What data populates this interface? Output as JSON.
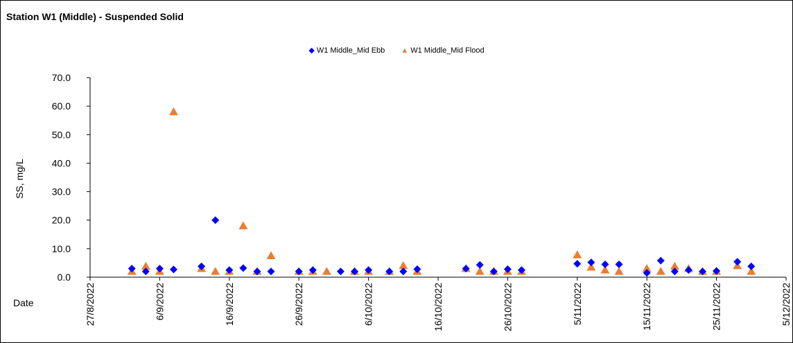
{
  "chart_data": {
    "type": "scatter",
    "title": "Station W1 (Middle) - Suspended Solid",
    "xlabel": "Date",
    "ylabel": "SS, mg/L",
    "ylim": [
      0,
      70
    ],
    "y_ticks": [
      "0.0",
      "10.0",
      "20.0",
      "30.0",
      "40.0",
      "50.0",
      "60.0",
      "70.0"
    ],
    "x_ticks": [
      "27/8/2022",
      "6/9/2022",
      "16/9/2022",
      "26/9/2022",
      "6/10/2022",
      "16/10/2022",
      "26/10/2022",
      "5/11/2022",
      "15/11/2022",
      "25/11/2022",
      "5/12/2022"
    ],
    "x_type": "date",
    "xlim": [
      "2022-08-27",
      "2022-12-05"
    ],
    "grid": false,
    "legend": "top-center",
    "series": [
      {
        "name": "W1 Middle_Mid Ebb",
        "color": "#0000ff",
        "marker": "diamond",
        "points": [
          [
            "2022-09-02",
            3.0
          ],
          [
            "2022-09-04",
            2.0
          ],
          [
            "2022-09-06",
            3.0
          ],
          [
            "2022-09-08",
            2.7
          ],
          [
            "2022-09-12",
            3.8
          ],
          [
            "2022-09-14",
            20.0
          ],
          [
            "2022-09-16",
            2.5
          ],
          [
            "2022-09-18",
            3.2
          ],
          [
            "2022-09-20",
            2.0
          ],
          [
            "2022-09-22",
            2.0
          ],
          [
            "2022-09-26",
            2.0
          ],
          [
            "2022-09-28",
            2.5
          ],
          [
            "2022-10-02",
            2.0
          ],
          [
            "2022-10-04",
            2.0
          ],
          [
            "2022-10-06",
            2.5
          ],
          [
            "2022-10-09",
            2.0
          ],
          [
            "2022-10-11",
            2.0
          ],
          [
            "2022-10-13",
            2.8
          ],
          [
            "2022-10-20",
            3.0
          ],
          [
            "2022-10-22",
            4.3
          ],
          [
            "2022-10-24",
            2.0
          ],
          [
            "2022-10-26",
            2.8
          ],
          [
            "2022-10-28",
            2.5
          ],
          [
            "2022-11-05",
            4.7
          ],
          [
            "2022-11-07",
            5.2
          ],
          [
            "2022-11-09",
            4.5
          ],
          [
            "2022-11-11",
            4.5
          ],
          [
            "2022-11-15",
            1.5
          ],
          [
            "2022-11-17",
            5.8
          ],
          [
            "2022-11-19",
            2.0
          ],
          [
            "2022-11-21",
            2.5
          ],
          [
            "2022-11-23",
            2.0
          ],
          [
            "2022-11-25",
            2.2
          ],
          [
            "2022-11-28",
            5.4
          ],
          [
            "2022-11-30",
            3.8
          ]
        ]
      },
      {
        "name": "W1 Middle_Mid Flood",
        "color": "#ed7d31",
        "marker": "triangle",
        "points": [
          [
            "2022-09-02",
            2.0
          ],
          [
            "2022-09-04",
            3.8
          ],
          [
            "2022-09-06",
            2.0
          ],
          [
            "2022-09-08",
            58.0
          ],
          [
            "2022-09-12",
            3.0
          ],
          [
            "2022-09-14",
            2.0
          ],
          [
            "2022-09-16",
            2.0
          ],
          [
            "2022-09-18",
            18.0
          ],
          [
            "2022-09-20",
            2.0
          ],
          [
            "2022-09-22",
            7.5
          ],
          [
            "2022-09-26",
            2.0
          ],
          [
            "2022-09-28",
            2.0
          ],
          [
            "2022-09-30",
            2.0
          ],
          [
            "2022-10-04",
            2.0
          ],
          [
            "2022-10-06",
            2.0
          ],
          [
            "2022-10-09",
            2.0
          ],
          [
            "2022-10-11",
            4.0
          ],
          [
            "2022-10-13",
            2.0
          ],
          [
            "2022-10-20",
            3.0
          ],
          [
            "2022-10-22",
            2.0
          ],
          [
            "2022-10-24",
            2.0
          ],
          [
            "2022-10-26",
            2.0
          ],
          [
            "2022-10-28",
            2.0
          ],
          [
            "2022-11-05",
            7.8
          ],
          [
            "2022-11-07",
            3.5
          ],
          [
            "2022-11-09",
            2.5
          ],
          [
            "2022-11-11",
            2.0
          ],
          [
            "2022-11-15",
            3.0
          ],
          [
            "2022-11-17",
            2.0
          ],
          [
            "2022-11-19",
            3.8
          ],
          [
            "2022-11-21",
            3.0
          ],
          [
            "2022-11-23",
            2.0
          ],
          [
            "2022-11-25",
            2.0
          ],
          [
            "2022-11-28",
            4.0
          ],
          [
            "2022-11-30",
            2.0
          ]
        ]
      }
    ]
  }
}
